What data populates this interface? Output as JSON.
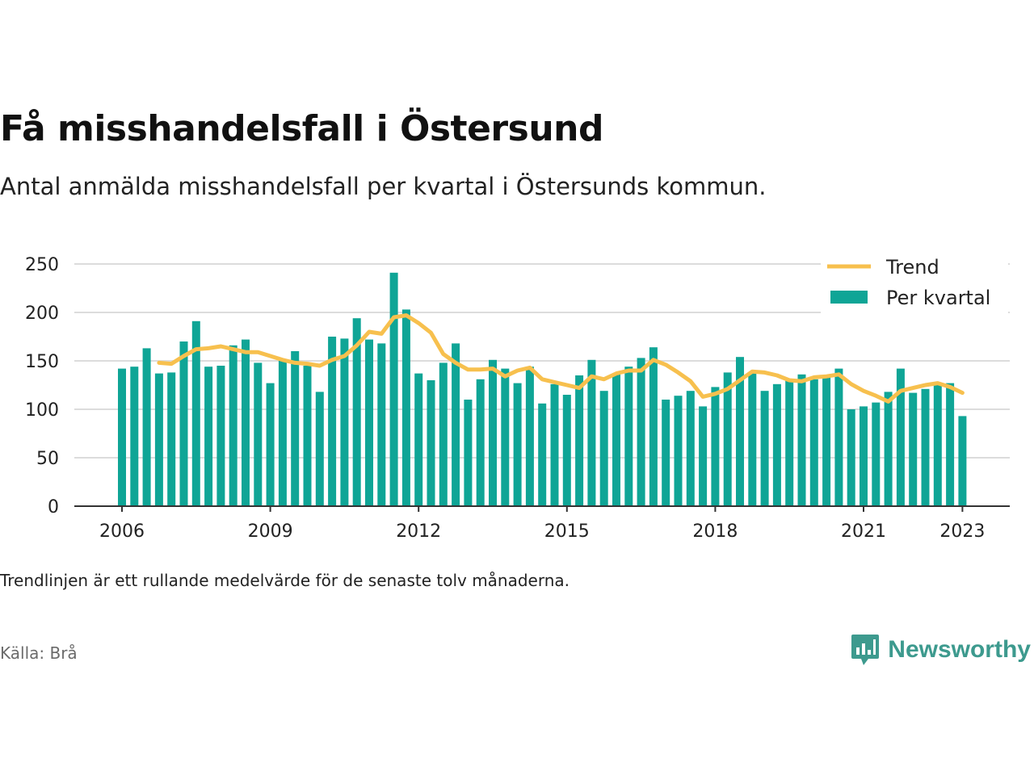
{
  "title": "Få misshandelsfall i Östersund",
  "subtitle": "Antal anmälda misshandelsfall per kvartal i Östersunds kommun.",
  "note": "Trendlinjen är ett rullande medelvärde för de senaste tolv månaderna.",
  "source": "Källa: Brå",
  "brand": {
    "name": "Newsworthy",
    "icon": "newsworthy-logo-icon"
  },
  "colors": {
    "bars": "#0fa596",
    "trend": "#f7c04e",
    "grid": "#dcdcdc",
    "axis": "#333333",
    "brand": "#3d9a8e"
  },
  "chart_data": {
    "type": "bar",
    "x_start": "2006 Q1",
    "x_end": "2023 Q1",
    "yticks": [
      0,
      50,
      100,
      150,
      200,
      250
    ],
    "ylim": [
      0,
      260
    ],
    "xticks": [
      "2006",
      "2009",
      "2012",
      "2015",
      "2018",
      "2021",
      "2023"
    ],
    "grid": true,
    "legend_position": "top-right",
    "series": [
      {
        "name": "Per kvartal",
        "type": "bar",
        "values": [
          142,
          144,
          163,
          137,
          138,
          170,
          191,
          144,
          145,
          166,
          172,
          148,
          127,
          150,
          160,
          145,
          118,
          175,
          173,
          194,
          172,
          168,
          241,
          203,
          137,
          130,
          148,
          168,
          110,
          131,
          151,
          142,
          127,
          144,
          106,
          126,
          115,
          135,
          151,
          119,
          136,
          144,
          153,
          164,
          110,
          114,
          119,
          103,
          123,
          138,
          154,
          138,
          119,
          126,
          130,
          136,
          131,
          133,
          142,
          100,
          103,
          107,
          118,
          142,
          117,
          121,
          125,
          127,
          93
        ]
      },
      {
        "name": "Trend",
        "type": "line",
        "values": [
          null,
          null,
          null,
          148,
          147,
          155,
          162,
          163,
          165,
          162,
          159,
          159,
          155,
          151,
          148,
          147,
          145,
          151,
          155,
          166,
          180,
          178,
          195,
          197,
          189,
          179,
          157,
          148,
          141,
          141,
          142,
          134,
          140,
          143,
          131,
          128,
          125,
          122,
          134,
          131,
          137,
          140,
          140,
          151,
          146,
          138,
          129,
          113,
          116,
          121,
          130,
          139,
          138,
          135,
          130,
          129,
          133,
          134,
          136,
          126,
          119,
          114,
          108,
          119,
          122,
          125,
          127,
          123,
          117
        ]
      }
    ]
  }
}
